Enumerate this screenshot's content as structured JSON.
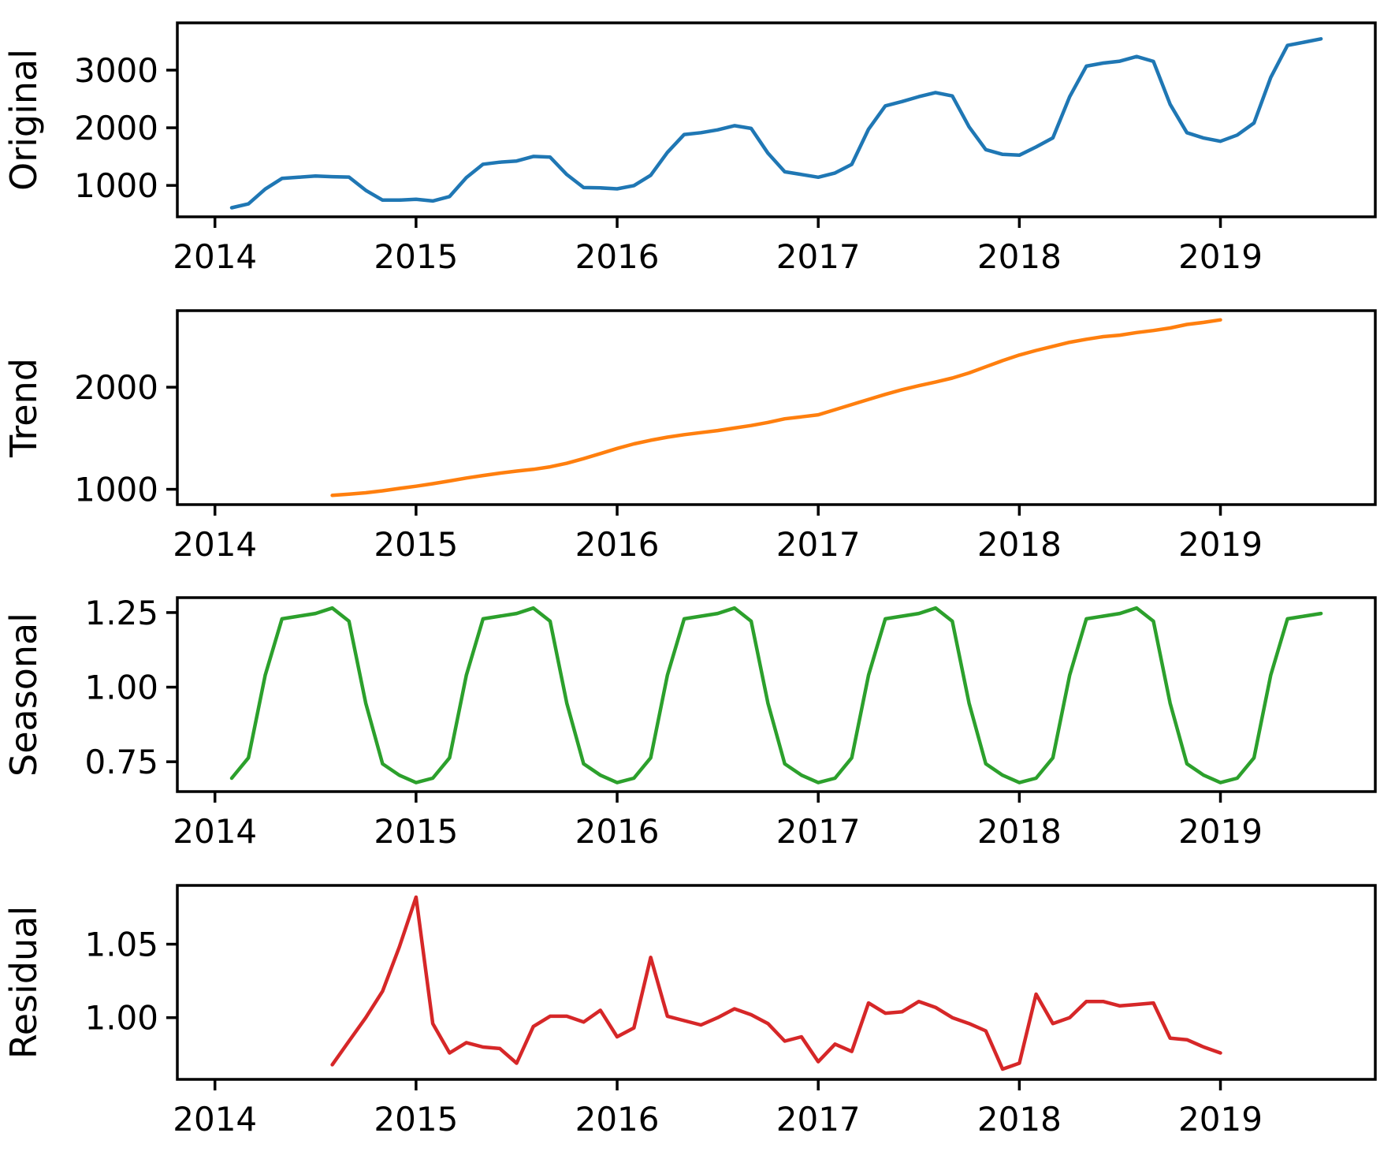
{
  "figure": {
    "kind": "seasonal-decomposition-plot",
    "background_color": "#ffffff",
    "text_color": "#000000",
    "n_panels": 4
  },
  "chart_data": {
    "type": "line",
    "frequency": "monthly",
    "x_tick_labels": [
      "2014",
      "2015",
      "2016",
      "2017",
      "2018",
      "2019"
    ],
    "x_ticks": [
      2014,
      2015,
      2016,
      2017,
      2018,
      2019
    ],
    "xlim": [
      2013.813,
      2019.77
    ],
    "grid": false,
    "legend": "none",
    "panels": [
      {
        "id": "original",
        "ylabel": "Original",
        "color": "#1f77b4",
        "x_start_year": 2014,
        "x_start_month": 2,
        "yticks": [
          1000,
          2000,
          3000
        ],
        "ytick_labels": [
          "1000",
          "2000",
          "3000"
        ],
        "ylim": [
          455,
          3820
        ],
        "values": [
          612,
          679,
          936,
          1121,
          1141,
          1162,
          1151,
          1144,
          914,
          745,
          745,
          758,
          730,
          806,
          1135,
          1367,
          1403,
          1423,
          1503,
          1491,
          1188,
          963,
          957,
          940,
          997,
          1176,
          1572,
          1883,
          1915,
          1964,
          2036,
          1988,
          1559,
          1236,
          1190,
          1141,
          1215,
          1364,
          1975,
          2379,
          2455,
          2540,
          2611,
          2552,
          2016,
          1620,
          1538,
          1525,
          1667,
          1824,
          2538,
          3069,
          3123,
          3155,
          3236,
          3151,
          2407,
          1914,
          1821,
          1765,
          1873,
          2083,
          2872,
          3429,
          3485,
          3542
        ]
      },
      {
        "id": "trend",
        "ylabel": "Trend",
        "color": "#ff7f0e",
        "x_start_year": 2014,
        "x_start_month": 8,
        "yticks": [
          1000,
          2000
        ],
        "ytick_labels": [
          "1000",
          "2000"
        ],
        "ylim": [
          850,
          2750
        ],
        "values": [
          940,
          952,
          966,
          985,
          1008,
          1030,
          1055,
          1082,
          1110,
          1135,
          1158,
          1178,
          1195,
          1220,
          1255,
          1300,
          1350,
          1400,
          1445,
          1480,
          1510,
          1535,
          1555,
          1575,
          1600,
          1625,
          1655,
          1690,
          1710,
          1730,
          1780,
          1830,
          1880,
          1930,
          1975,
          2015,
          2050,
          2090,
          2140,
          2200,
          2260,
          2315,
          2360,
          2400,
          2440,
          2470,
          2495,
          2510,
          2535,
          2555,
          2580,
          2615,
          2635,
          2660
        ]
      },
      {
        "id": "seasonal",
        "ylabel": "Seasonal",
        "color": "#2ca02c",
        "x_start_year": 2014,
        "x_start_month": 2,
        "yticks": [
          0.75,
          1.0,
          1.25
        ],
        "ytick_labels": [
          "0.75",
          "1.00",
          "1.25"
        ],
        "ylim": [
          0.65,
          1.3
        ],
        "monthly_pattern_jan_to_dec": [
          0.68,
          0.695,
          0.763,
          1.04,
          1.229,
          1.238,
          1.247,
          1.265,
          1.221,
          0.946,
          0.743,
          0.705
        ],
        "values": [
          0.695,
          0.763,
          1.04,
          1.229,
          1.238,
          1.247,
          1.265,
          1.221,
          0.946,
          0.743,
          0.705,
          0.68,
          0.695,
          0.763,
          1.04,
          1.229,
          1.238,
          1.247,
          1.265,
          1.221,
          0.946,
          0.743,
          0.705,
          0.68,
          0.695,
          0.763,
          1.04,
          1.229,
          1.238,
          1.247,
          1.265,
          1.221,
          0.946,
          0.743,
          0.705,
          0.68,
          0.695,
          0.763,
          1.04,
          1.229,
          1.238,
          1.247,
          1.265,
          1.221,
          0.946,
          0.743,
          0.705,
          0.68,
          0.695,
          0.763,
          1.04,
          1.229,
          1.238,
          1.247,
          1.265,
          1.221,
          0.946,
          0.743,
          0.705,
          0.68,
          0.695,
          0.763,
          1.04,
          1.229,
          1.238,
          1.247
        ]
      },
      {
        "id": "residual",
        "ylabel": "Residual",
        "color": "#d62728",
        "x_start_year": 2014,
        "x_start_month": 8,
        "yticks": [
          1.0,
          1.05
        ],
        "ytick_labels": [
          "1.00",
          "1.05"
        ],
        "ylim": [
          0.958,
          1.09
        ],
        "values": [
          0.968,
          0.984,
          1.0,
          1.018,
          1.048,
          1.082,
          0.996,
          0.976,
          0.983,
          0.98,
          0.979,
          0.969,
          0.994,
          1.001,
          1.001,
          0.997,
          1.005,
          0.987,
          0.993,
          1.041,
          1.001,
          0.998,
          0.995,
          1.0,
          1.006,
          1.002,
          0.996,
          0.984,
          0.987,
          0.97,
          0.982,
          0.977,
          1.01,
          1.003,
          1.004,
          1.011,
          1.007,
          1.0,
          0.996,
          0.991,
          0.965,
          0.969,
          1.016,
          0.996,
          1.0,
          1.011,
          1.011,
          1.008,
          1.009,
          1.01,
          0.986,
          0.985,
          0.98,
          0.976
        ]
      }
    ]
  }
}
